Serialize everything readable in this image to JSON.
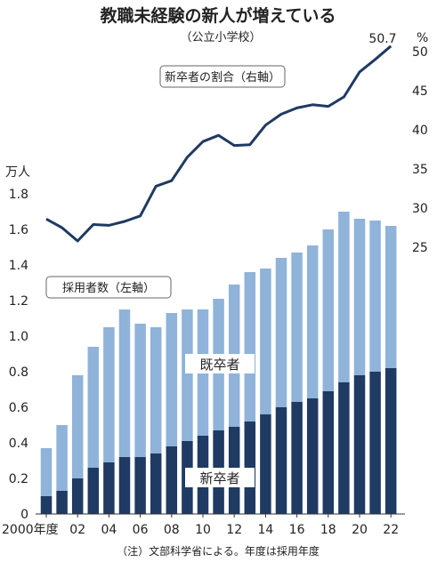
{
  "chart_data": {
    "type": "bar+line",
    "title": "教職未経験の新人が増えている",
    "subtitle": "（公立小学校）",
    "note": "（注）文部科学省による。年度は採用年度",
    "x_first_label": "2000年度",
    "x": [
      2000,
      2001,
      2002,
      2003,
      2004,
      2005,
      2006,
      2007,
      2008,
      2009,
      2010,
      2011,
      2012,
      2013,
      2014,
      2015,
      2016,
      2017,
      2018,
      2019,
      2020,
      2021,
      2022
    ],
    "x_tick_labels": [
      "2000年度",
      "02",
      "04",
      "06",
      "08",
      "10",
      "12",
      "14",
      "16",
      "18",
      "20",
      "22"
    ],
    "left_axis": {
      "unit": "万人",
      "ylim": [
        0,
        1.8
      ],
      "ticks": [
        "0",
        "0.2",
        "0.4",
        "0.6",
        "0.8",
        "1.0",
        "1.2",
        "1.4",
        "1.6",
        "1.8"
      ]
    },
    "right_axis": {
      "unit": "%",
      "ylim": [
        22,
        52
      ],
      "ticks": [
        "25",
        "30",
        "35",
        "40",
        "45",
        "50"
      ]
    },
    "bars_label": "採用者数（左軸）",
    "line_label": "新卒者の割合（右軸）",
    "series": [
      {
        "name": "新卒者",
        "axis": "left",
        "color": "#1f3a63",
        "values": [
          0.1,
          0.13,
          0.2,
          0.26,
          0.29,
          0.32,
          0.32,
          0.34,
          0.38,
          0.41,
          0.44,
          0.47,
          0.49,
          0.52,
          0.56,
          0.6,
          0.63,
          0.65,
          0.69,
          0.74,
          0.78,
          0.8,
          0.82
        ]
      },
      {
        "name": "既卒者",
        "axis": "left",
        "color": "#8fb3d9",
        "values": [
          0.27,
          0.37,
          0.58,
          0.68,
          0.76,
          0.83,
          0.75,
          0.71,
          0.75,
          0.74,
          0.71,
          0.74,
          0.8,
          0.84,
          0.82,
          0.84,
          0.84,
          0.86,
          0.91,
          0.96,
          0.88,
          0.85,
          0.8
        ]
      },
      {
        "name": "新卒者の割合",
        "axis": "right",
        "color": "#1f3a63",
        "values": [
          28.6,
          27.5,
          25.8,
          27.9,
          27.8,
          28.3,
          29.0,
          32.8,
          33.5,
          36.5,
          38.5,
          39.3,
          38.0,
          38.1,
          40.6,
          42.0,
          42.8,
          43.2,
          43.0,
          44.2,
          47.4,
          49.0,
          50.7
        ]
      }
    ],
    "annotations": {
      "last_value_label": "50.7"
    },
    "grid": false,
    "legend": "inline labels"
  }
}
